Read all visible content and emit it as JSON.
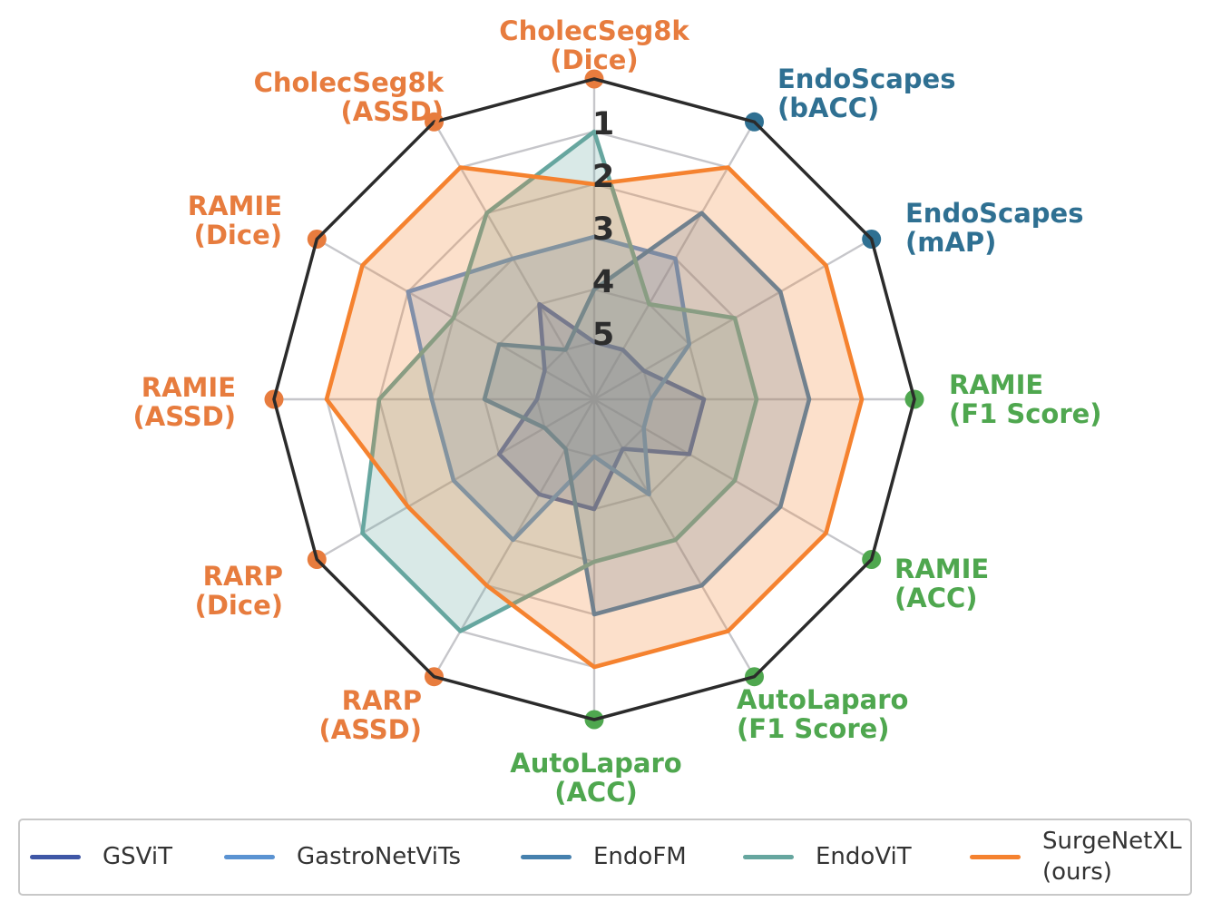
{
  "chart_data": {
    "type": "radar",
    "description": "Per-dataset rank comparison (1 = best, outermost ring; 5 = worst, innermost ring) of surgical foundation models",
    "rank_ticks": [
      "1",
      "2",
      "3",
      "4",
      "5"
    ],
    "axis_count": 12,
    "axes": [
      {
        "label_line1": "CholecSeg8k",
        "label_line2": "(Dice)",
        "group": "segmentation"
      },
      {
        "label_line1": "EndoScapes",
        "label_line2": "(bACC)",
        "group": "endoscapes"
      },
      {
        "label_line1": "EndoScapes",
        "label_line2": "(mAP)",
        "group": "endoscapes"
      },
      {
        "label_line1": "RAMIE",
        "label_line2": "(F1 Score)",
        "group": "recognition"
      },
      {
        "label_line1": "RAMIE",
        "label_line2": "(ACC)",
        "group": "recognition"
      },
      {
        "label_line1": "AutoLaparo",
        "label_line2": "(F1 Score)",
        "group": "recognition"
      },
      {
        "label_line1": "AutoLaparo",
        "label_line2": "(ACC)",
        "group": "recognition"
      },
      {
        "label_line1": "RARP",
        "label_line2": "(ASSD)",
        "group": "segmentation"
      },
      {
        "label_line1": "RARP",
        "label_line2": "(Dice)",
        "group": "segmentation"
      },
      {
        "label_line1": "RAMIE",
        "label_line2": "(ASSD)",
        "group": "segmentation"
      },
      {
        "label_line1": "RAMIE",
        "label_line2": "(Dice)",
        "group": "segmentation"
      },
      {
        "label_line1": "CholecSeg8k",
        "label_line2": "(ASSD)",
        "group": "segmentation"
      }
    ],
    "series": [
      {
        "name": "GSViT",
        "color": "#3f57a6",
        "ranks": [
          5,
          5,
          5,
          4,
          4,
          5,
          4,
          4,
          4,
          5,
          5,
          4
        ]
      },
      {
        "name": "GastroNetViTs",
        "color": "#5b93d2",
        "ranks": [
          3,
          3,
          4,
          5,
          5,
          4,
          5,
          3,
          3,
          3,
          2,
          3
        ]
      },
      {
        "name": "EndoFM",
        "color": "#4681ae",
        "ranks": [
          4,
          2,
          2,
          2,
          2,
          2,
          2,
          5,
          5,
          4,
          4,
          5
        ]
      },
      {
        "name": "EndoViT",
        "color": "#66a69f",
        "ranks": [
          1,
          4,
          3,
          3,
          3,
          3,
          3,
          1,
          1,
          2,
          3,
          2
        ]
      },
      {
        "name": "SurgeNetXL",
        "color": "#f5822f",
        "ranks": [
          2,
          1,
          1,
          1,
          1,
          1,
          1,
          2,
          2,
          1,
          1,
          1
        ]
      }
    ],
    "rank_scale": {
      "best": 1,
      "worst": 5,
      "direction": "outward_is_better"
    },
    "grid": {
      "rings": 5,
      "spokes": 12,
      "outer_ring_color": "#2b2b2b",
      "grid_color": "#c6c6ca"
    }
  },
  "group_colors": {
    "segmentation": "#e77c3e",
    "endoscapes": "#2f7092",
    "recognition": "#4fa74f"
  },
  "legend": {
    "entries": [
      {
        "label": "GSViT",
        "series": "GSViT"
      },
      {
        "label": "GastroNetViTs",
        "series": "GastroNetViTs"
      },
      {
        "label": "EndoFM",
        "series": "EndoFM"
      },
      {
        "label": "EndoViT",
        "series": "EndoViT"
      },
      {
        "label": "SurgeNetXL\n(ours)",
        "series": "SurgeNetXL"
      }
    ]
  }
}
